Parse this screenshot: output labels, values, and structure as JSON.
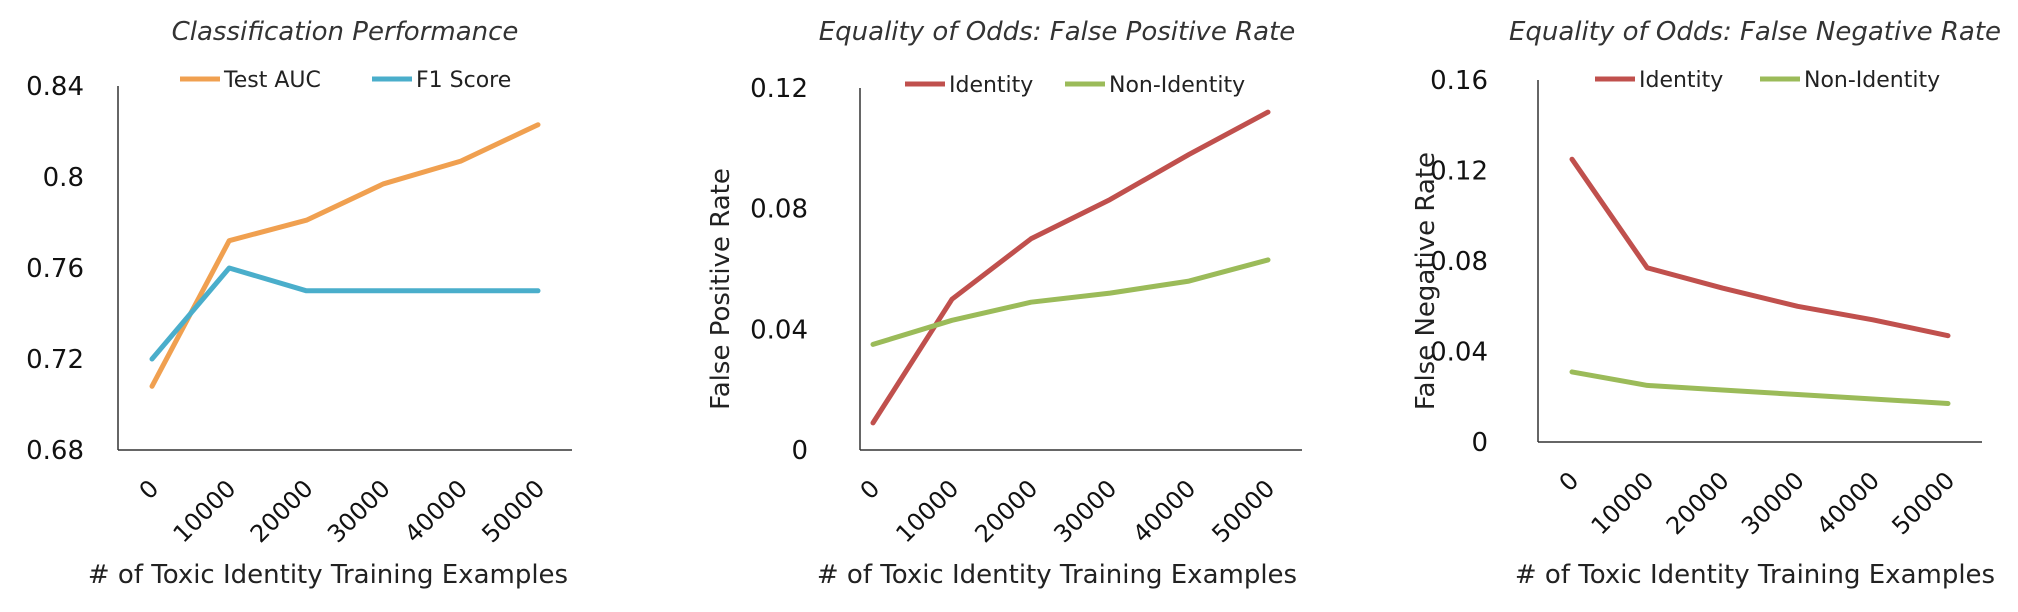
{
  "chart_data": [
    {
      "type": "line",
      "title": "Classification Performance",
      "xlabel": "# of Toxic Identity Training Examples",
      "ylabel": "",
      "categories": [
        "0",
        "10000",
        "20000",
        "30000",
        "40000",
        "50000"
      ],
      "yticks": [
        "0.68",
        "0.72",
        "0.76",
        "0.8",
        "0.84"
      ],
      "ylim": [
        0.68,
        0.84
      ],
      "grid": false,
      "legend_position": "top",
      "series": [
        {
          "name": "Test AUC",
          "color": "#f0a050",
          "values": [
            0.708,
            0.772,
            0.781,
            0.797,
            0.807,
            0.823
          ]
        },
        {
          "name": "F1 Score",
          "color": "#4aaecb",
          "values": [
            0.72,
            0.76,
            0.75,
            0.75,
            0.75,
            0.75
          ]
        }
      ]
    },
    {
      "type": "line",
      "title": "Equality of Odds: False Positive Rate",
      "xlabel": "# of Toxic Identity Training Examples",
      "ylabel": "False Positive Rate",
      "categories": [
        "0",
        "10000",
        "20000",
        "30000",
        "40000",
        "50000"
      ],
      "yticks": [
        "0",
        "0.04",
        "0.08",
        "0.12"
      ],
      "ylim": [
        0,
        0.12
      ],
      "grid": false,
      "legend_position": "top",
      "series": [
        {
          "name": "Identity",
          "color": "#c0504d",
          "values": [
            0.009,
            0.05,
            0.07,
            0.083,
            0.098,
            0.112
          ]
        },
        {
          "name": "Non-Identity",
          "color": "#9bbb59",
          "values": [
            0.035,
            0.043,
            0.049,
            0.052,
            0.056,
            0.063
          ]
        }
      ]
    },
    {
      "type": "line",
      "title": "Equality of Odds: False Negative Rate",
      "xlabel": "# of Toxic Identity Training Examples",
      "ylabel": "False Negative  Rate",
      "categories": [
        "0",
        "10000",
        "20000",
        "30000",
        "40000",
        "50000"
      ],
      "yticks": [
        "0",
        "0.04",
        "0.08",
        "0.12",
        "0.16"
      ],
      "ylim": [
        0,
        0.16
      ],
      "grid": false,
      "legend_position": "top",
      "series": [
        {
          "name": "Identity",
          "color": "#c0504d",
          "values": [
            0.125,
            0.077,
            0.068,
            0.06,
            0.054,
            0.047
          ]
        },
        {
          "name": "Non-Identity",
          "color": "#9bbb59",
          "values": [
            0.031,
            0.025,
            0.023,
            0.021,
            0.019,
            0.017
          ]
        }
      ]
    }
  ]
}
